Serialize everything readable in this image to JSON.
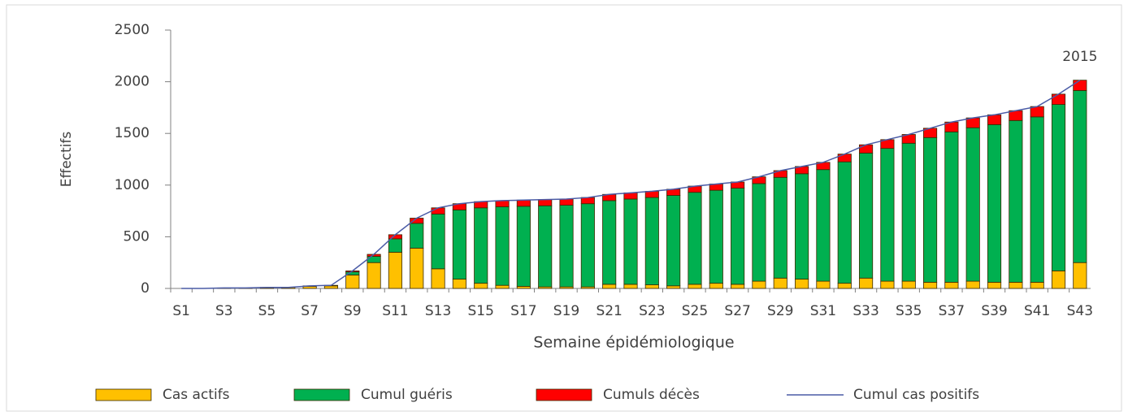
{
  "chart_data": {
    "type": "stacked-bar-line",
    "x_label": "Semaine épidémiologique",
    "y_label": "Effectifs",
    "categories": [
      "S1",
      null,
      "S3",
      null,
      "S5",
      null,
      "S7",
      null,
      "S9",
      null,
      "S11",
      null,
      "S13",
      null,
      "S15",
      null,
      "S17",
      null,
      "S19",
      null,
      "S21",
      null,
      "S23",
      null,
      "S25",
      null,
      "S27",
      null,
      "S29",
      null,
      "S31",
      null,
      "S33",
      null,
      "S35",
      null,
      "S37",
      null,
      "S39",
      null,
      "S41",
      null,
      "S43"
    ],
    "series": [
      {
        "name": "Cas actifs",
        "color": "#ffc000",
        "kind": "bar",
        "values": [
          0,
          0,
          5,
          5,
          10,
          10,
          20,
          25,
          130,
          250,
          350,
          390,
          190,
          90,
          50,
          30,
          20,
          15,
          15,
          15,
          40,
          40,
          35,
          25,
          40,
          50,
          40,
          70,
          100,
          90,
          70,
          50,
          100,
          70,
          70,
          60,
          60,
          70,
          60,
          60,
          60,
          170,
          250
        ]
      },
      {
        "name": "Cumul guéris",
        "color": "#00b050",
        "kind": "bar",
        "values": [
          0,
          0,
          0,
          0,
          0,
          0,
          5,
          5,
          30,
          60,
          130,
          240,
          530,
          670,
          730,
          760,
          775,
          785,
          790,
          805,
          810,
          825,
          845,
          875,
          890,
          900,
          930,
          945,
          975,
          1020,
          1080,
          1175,
          1210,
          1285,
          1335,
          1400,
          1455,
          1485,
          1525,
          1565,
          1600,
          1610,
          1665
        ]
      },
      {
        "name": "Cumuls décès",
        "color": "#ff0000",
        "kind": "bar",
        "values": [
          0,
          0,
          0,
          0,
          0,
          0,
          0,
          0,
          10,
          20,
          40,
          50,
          60,
          60,
          60,
          60,
          60,
          60,
          60,
          60,
          60,
          60,
          60,
          60,
          60,
          60,
          60,
          65,
          65,
          70,
          70,
          75,
          80,
          85,
          85,
          90,
          95,
          95,
          95,
          95,
          100,
          100,
          100
        ]
      },
      {
        "name": "Cumul cas positifs",
        "color": "#4a5ba6",
        "kind": "line",
        "values": [
          0,
          0,
          5,
          5,
          10,
          10,
          25,
          30,
          170,
          330,
          520,
          680,
          780,
          820,
          840,
          850,
          855,
          860,
          865,
          880,
          910,
          925,
          940,
          960,
          990,
          1010,
          1030,
          1080,
          1140,
          1180,
          1220,
          1300,
          1390,
          1440,
          1490,
          1550,
          1610,
          1650,
          1680,
          1720,
          1760,
          1880,
          2015
        ]
      }
    ],
    "ylim": [
      0,
      2500
    ],
    "yticks": [
      0,
      500,
      1000,
      1500,
      2000,
      2500
    ],
    "grid": false,
    "legend": "bottom"
  }
}
